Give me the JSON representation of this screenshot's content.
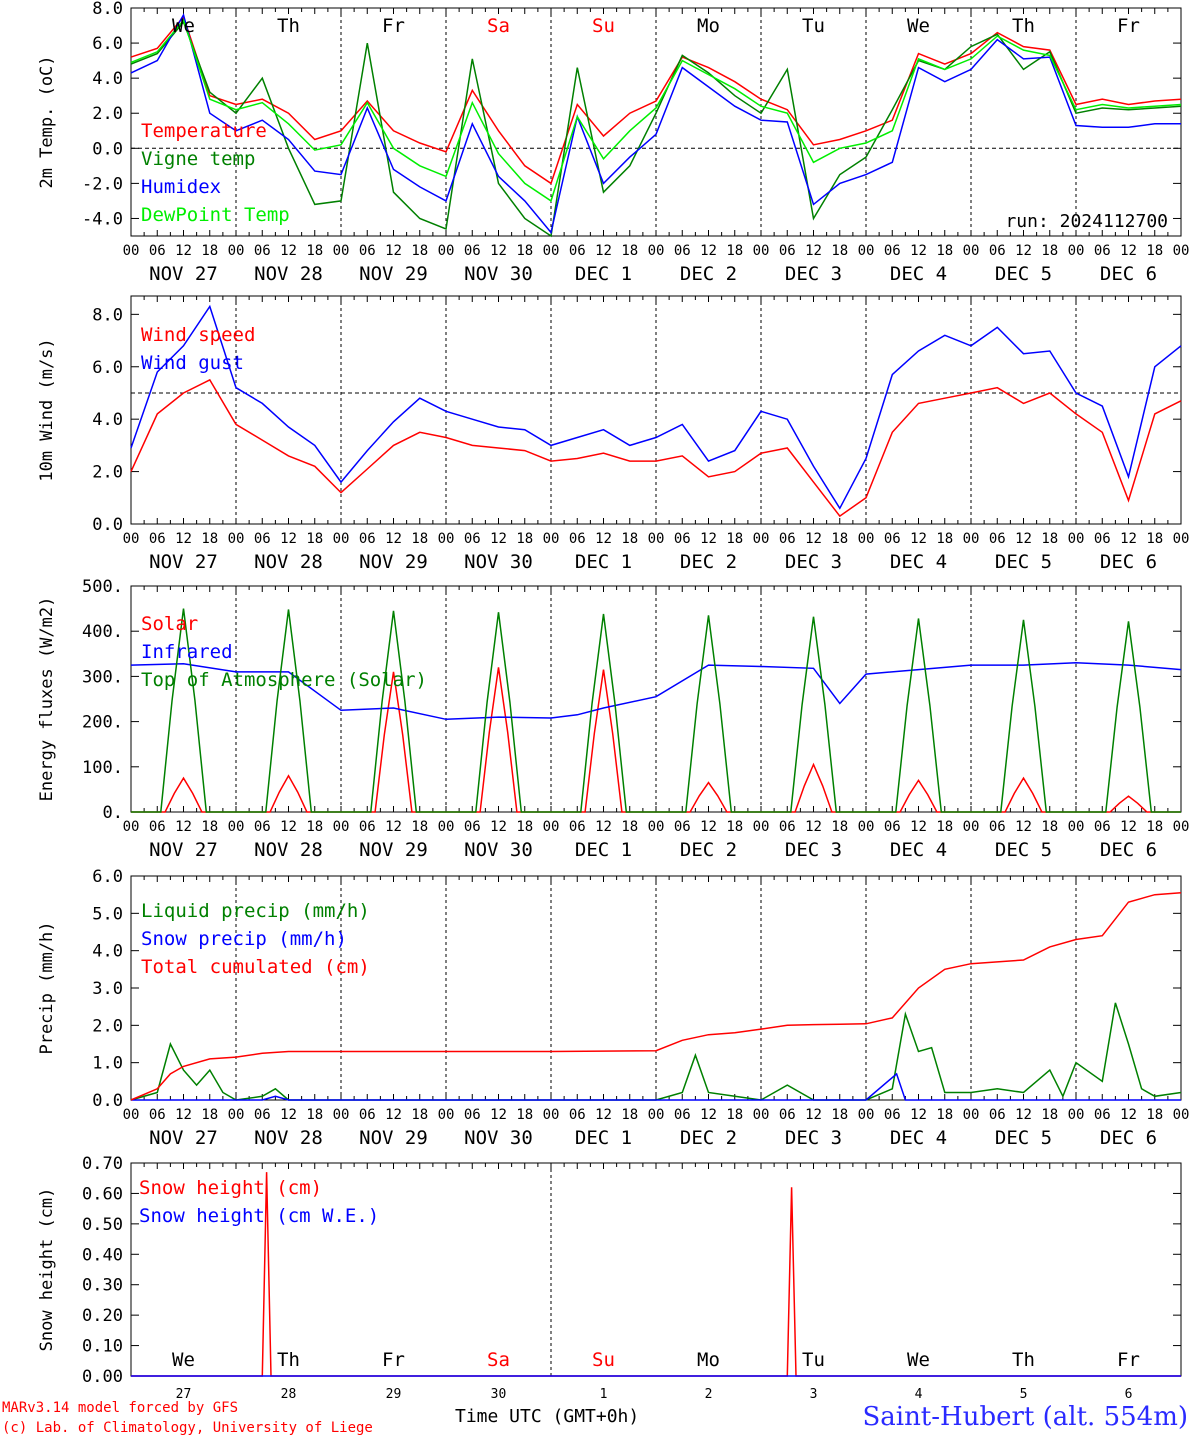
{
  "run_label": "run: 2024112700",
  "xaxis": {
    "hour_ticks": [
      "00",
      "06",
      "12",
      "18"
    ],
    "date_labels": [
      "NOV 27",
      "NOV 28",
      "NOV 29",
      "NOV 30",
      "DEC  1",
      "DEC  2",
      "DEC  3",
      "DEC  4",
      "DEC  5",
      "DEC  6"
    ],
    "weekdays": [
      "We",
      "Th",
      "Fr",
      "Sa",
      "Su",
      "Mo",
      "Tu",
      "We",
      "Th",
      "Fr"
    ],
    "weekday_colors": [
      "#000000",
      "#000000",
      "#000000",
      "#ff0000",
      "#ff0000",
      "#000000",
      "#000000",
      "#000000",
      "#000000",
      "#000000"
    ],
    "day_numbers": [
      "27",
      "28",
      "29",
      "30",
      "1",
      "2",
      "3",
      "4",
      "5",
      "6"
    ],
    "title": "Time UTC (GMT+0h)"
  },
  "footer": {
    "credit_line1": "MARv3.14 model forced by GFS",
    "credit_line2": "(c) Lab. of Climatology, University of Liege",
    "station": "Saint-Hubert (alt. 554m)"
  },
  "colors": {
    "red": "#ff0000",
    "green": "#008000",
    "blue": "#0000ff",
    "lightgreen": "#00ee00"
  },
  "chart_data": [
    {
      "type": "line",
      "ylabel": "2m Temp. (oC)",
      "ylim": [
        -5,
        8
      ],
      "yticks": [
        "8.0",
        "6.0",
        "4.0",
        "2.0",
        "0.0",
        "-2.0",
        "-4.0"
      ],
      "ref_line": 0,
      "x_hours": [
        0,
        6,
        12,
        18,
        24,
        30,
        36,
        42,
        48,
        54,
        60,
        66,
        72,
        78,
        84,
        90,
        96,
        102,
        108,
        114,
        120,
        126,
        132,
        138,
        144,
        150,
        156,
        162,
        168,
        174,
        180,
        186,
        192,
        198,
        204,
        210,
        216,
        222,
        228,
        234,
        240
      ],
      "series": [
        {
          "name": "Temperature",
          "color": "#ff0000",
          "values": [
            5.2,
            5.7,
            7.5,
            3.0,
            2.5,
            2.8,
            2.0,
            0.5,
            1.0,
            2.7,
            1.0,
            0.3,
            -0.2,
            3.3,
            1.0,
            -1.0,
            -2.0,
            2.5,
            0.7,
            2.0,
            2.7,
            5.2,
            4.6,
            3.8,
            2.8,
            2.2,
            0.2,
            0.5,
            1.0,
            1.6,
            5.4,
            4.8,
            5.4,
            6.6,
            5.8,
            5.6,
            2.5,
            2.8,
            2.5,
            2.7,
            2.8
          ]
        },
        {
          "name": "Vigne temp",
          "color": "#008000",
          "values": [
            4.8,
            5.4,
            7.2,
            3.2,
            2.0,
            4.0,
            0.0,
            -3.2,
            -3.0,
            6.0,
            -2.5,
            -4.0,
            -4.6,
            5.1,
            -2.0,
            -4.0,
            -5.0,
            4.6,
            -2.5,
            -1.0,
            2.0,
            5.3,
            4.3,
            3.0,
            2.0,
            4.5,
            -4.0,
            -1.5,
            -0.5,
            2.2,
            5.0,
            4.5,
            5.8,
            6.5,
            4.5,
            5.5,
            2.0,
            2.3,
            2.2,
            2.3,
            2.4
          ]
        },
        {
          "name": "Humidex",
          "color": "#0000ff",
          "values": [
            4.3,
            5.0,
            7.6,
            2.0,
            1.0,
            1.6,
            0.5,
            -1.3,
            -1.5,
            2.3,
            -1.2,
            -2.2,
            -3.0,
            1.4,
            -1.6,
            -3.0,
            -4.8,
            1.8,
            -2.0,
            -0.5,
            0.8,
            4.6,
            3.5,
            2.4,
            1.6,
            1.5,
            -3.2,
            -2.0,
            -1.5,
            -0.8,
            4.6,
            3.8,
            4.5,
            6.2,
            5.1,
            5.2,
            1.3,
            1.2,
            1.2,
            1.4,
            1.4
          ]
        },
        {
          "name": "DewPoint Temp",
          "color": "#00ee00",
          "values": [
            4.9,
            5.5,
            7.3,
            2.8,
            2.2,
            2.6,
            1.4,
            -0.1,
            0.2,
            2.6,
            0.0,
            -1.0,
            -1.6,
            2.6,
            -0.3,
            -2.0,
            -3.0,
            1.8,
            -0.6,
            1.0,
            2.3,
            5.0,
            4.2,
            3.4,
            2.4,
            2.0,
            -0.8,
            0.0,
            0.3,
            1.0,
            5.1,
            4.5,
            5.1,
            6.4,
            5.6,
            5.3,
            2.2,
            2.5,
            2.3,
            2.4,
            2.5
          ]
        }
      ]
    },
    {
      "type": "line",
      "ylabel": "10m Wind (m/s)",
      "ylim": [
        0,
        8.7
      ],
      "yticks": [
        "8.0",
        "6.0",
        "4.0",
        "2.0",
        "0.0"
      ],
      "ref_line": 5,
      "x_hours": [
        0,
        6,
        12,
        18,
        24,
        30,
        36,
        42,
        48,
        54,
        60,
        66,
        72,
        78,
        84,
        90,
        96,
        102,
        108,
        114,
        120,
        126,
        132,
        138,
        144,
        150,
        156,
        162,
        168,
        174,
        180,
        186,
        192,
        198,
        204,
        210,
        216,
        222,
        228,
        234,
        240
      ],
      "series": [
        {
          "name": "Wind speed",
          "color": "#ff0000",
          "values": [
            2.0,
            4.2,
            5.0,
            5.5,
            3.8,
            3.2,
            2.6,
            2.2,
            1.2,
            2.1,
            3.0,
            3.5,
            3.3,
            3.0,
            2.9,
            2.8,
            2.4,
            2.5,
            2.7,
            2.4,
            2.4,
            2.6,
            1.8,
            2.0,
            2.7,
            2.9,
            1.6,
            0.3,
            1.0,
            3.5,
            4.6,
            4.8,
            5.0,
            5.2,
            4.6,
            5.0,
            4.2,
            3.5,
            0.9,
            4.2,
            4.7
          ]
        },
        {
          "name": "Wind gust",
          "color": "#0000ff",
          "values": [
            2.9,
            5.8,
            6.8,
            8.3,
            5.2,
            4.6,
            3.7,
            3.0,
            1.6,
            2.8,
            3.9,
            4.8,
            4.3,
            4.0,
            3.7,
            3.6,
            3.0,
            3.3,
            3.6,
            3.0,
            3.3,
            3.8,
            2.4,
            2.8,
            4.3,
            4.0,
            2.2,
            0.6,
            2.5,
            5.7,
            6.6,
            7.2,
            6.8,
            7.5,
            6.5,
            6.6,
            5.0,
            4.5,
            1.8,
            6.0,
            6.8
          ]
        }
      ]
    },
    {
      "type": "line",
      "ylabel": "Energy fluxes (W/m2)",
      "ylim": [
        0,
        500
      ],
      "yticks": [
        "500.",
        "400.",
        "300.",
        "200.",
        "100.",
        "0."
      ],
      "ref_line": null,
      "series": [
        {
          "name": "Solar",
          "color": "#ff0000",
          "day_peaks": [
            75,
            80,
            310,
            320,
            315,
            65,
            105,
            70,
            75,
            35
          ]
        },
        {
          "name": "Infrared",
          "color": "#0000ff",
          "x_hours": [
            0,
            12,
            24,
            36,
            48,
            60,
            72,
            84,
            96,
            102,
            108,
            120,
            132,
            144,
            156,
            162,
            168,
            180,
            192,
            204,
            216,
            228,
            240
          ],
          "values": [
            325,
            328,
            310,
            310,
            225,
            230,
            205,
            210,
            208,
            215,
            230,
            255,
            325,
            322,
            318,
            240,
            305,
            315,
            325,
            325,
            330,
            325,
            315
          ]
        },
        {
          "name": "Top of Atmosphere (Solar)",
          "color": "#008000",
          "day_peaks": [
            450,
            448,
            445,
            442,
            438,
            435,
            432,
            428,
            425,
            422
          ]
        }
      ]
    },
    {
      "type": "line",
      "ylabel": "Precip (mm/h)",
      "ylim": [
        0,
        6
      ],
      "yticks": [
        "6.0",
        "5.0",
        "4.0",
        "3.0",
        "2.0",
        "1.0",
        "0.0"
      ],
      "ref_line": null,
      "series": [
        {
          "name": "Liquid precip (mm/h)",
          "color": "#008000",
          "x_hours": [
            0,
            6,
            9,
            12,
            15,
            18,
            21,
            24,
            30,
            33,
            36,
            42,
            96,
            120,
            126,
            129,
            132,
            138,
            144,
            150,
            156,
            162,
            168,
            174,
            177,
            180,
            183,
            186,
            192,
            198,
            204,
            210,
            213,
            216,
            222,
            225,
            228,
            231,
            234,
            240
          ],
          "values": [
            0,
            0.2,
            1.5,
            0.8,
            0.4,
            0.8,
            0.2,
            0,
            0.1,
            0.3,
            0,
            0,
            0,
            0,
            0.2,
            1.2,
            0.2,
            0.1,
            0,
            0.4,
            0,
            0,
            0,
            0.3,
            2.3,
            1.3,
            1.4,
            0.2,
            0.2,
            0.3,
            0.2,
            0.8,
            0.1,
            1.0,
            0.5,
            2.6,
            1.5,
            0.3,
            0.1,
            0.2
          ]
        },
        {
          "name": "Snow precip (mm/h)",
          "color": "#0000ff",
          "x_hours": [
            0,
            30,
            33,
            36,
            42,
            168,
            175,
            177,
            180,
            186,
            240
          ],
          "values": [
            0,
            0,
            0.1,
            0,
            0,
            0,
            0.7,
            0,
            0,
            0,
            0
          ]
        },
        {
          "name": "Total cumulated (cm)",
          "color": "#ff0000",
          "x_hours": [
            0,
            6,
            9,
            12,
            18,
            24,
            30,
            36,
            42,
            48,
            96,
            120,
            126,
            132,
            138,
            144,
            150,
            156,
            162,
            168,
            174,
            180,
            186,
            192,
            198,
            204,
            210,
            216,
            222,
            228,
            234,
            240
          ],
          "values": [
            0,
            0.3,
            0.7,
            0.9,
            1.1,
            1.15,
            1.25,
            1.3,
            1.3,
            1.3,
            1.3,
            1.32,
            1.6,
            1.75,
            1.8,
            1.9,
            2.0,
            2.02,
            2.03,
            2.04,
            2.2,
            3.0,
            3.5,
            3.65,
            3.7,
            3.75,
            4.1,
            4.3,
            4.4,
            5.3,
            5.5,
            5.55
          ]
        }
      ]
    },
    {
      "type": "line",
      "ylabel": "Snow height (cm)",
      "ylim": [
        0,
        0.7
      ],
      "yticks": [
        "0.70",
        "0.60",
        "0.50",
        "0.40",
        "0.30",
        "0.20",
        "0.10",
        "0.00"
      ],
      "ref_line": null,
      "series": [
        {
          "name": "Snow height (cm)",
          "color": "#ff0000",
          "x_hours": [
            0,
            30,
            31,
            32,
            150,
            151,
            152,
            240
          ],
          "values": [
            0,
            0,
            0.67,
            0,
            0,
            0.62,
            0,
            0
          ]
        },
        {
          "name": "Snow height (cm W.E.)",
          "color": "#0000ff",
          "x_hours": [
            0,
            240
          ],
          "values": [
            0,
            0
          ]
        }
      ]
    }
  ]
}
